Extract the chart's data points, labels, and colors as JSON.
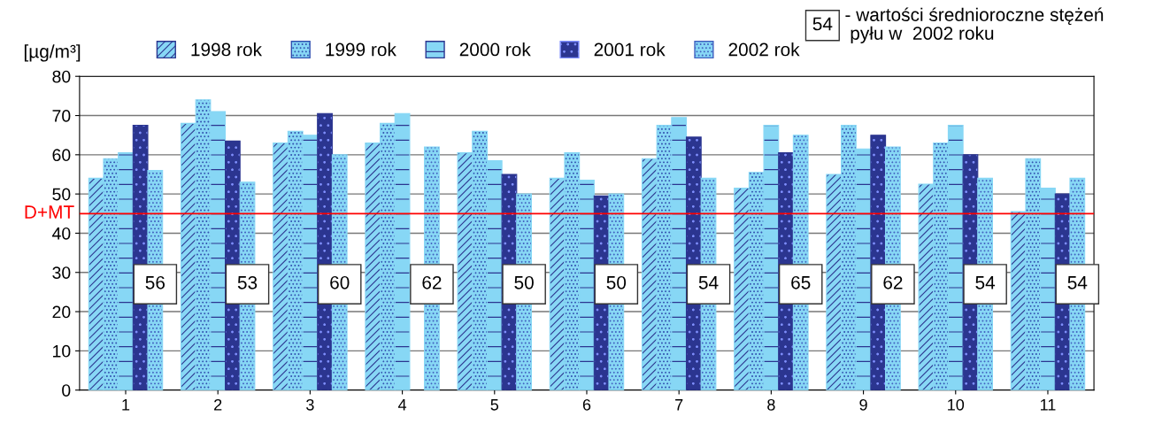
{
  "chart_data": {
    "type": "bar",
    "ylabel": "[µg/m³]",
    "categories": [
      "1",
      "2",
      "3",
      "4",
      "5",
      "6",
      "7",
      "8",
      "9",
      "10",
      "11"
    ],
    "series": [
      {
        "name": "1998 rok",
        "color": "#87d7f5",
        "values": [
          54,
          68,
          63,
          63,
          60.5,
          54,
          59,
          51.5,
          55,
          52.5,
          45.5
        ]
      },
      {
        "name": "1999 rok",
        "color": "#87d7f5",
        "values": [
          59,
          74,
          66,
          68,
          66,
          60.5,
          67.5,
          55.5,
          67.5,
          63,
          59
        ]
      },
      {
        "name": "2000 rok",
        "color": "#87d7f5",
        "values": [
          60.5,
          71,
          65,
          70.5,
          58.5,
          53.5,
          69.5,
          67.5,
          61.5,
          67.5,
          51.5
        ]
      },
      {
        "name": "2001 rok",
        "color": "#2b3590",
        "values": [
          67.5,
          63.5,
          70.5,
          null,
          55,
          49.5,
          64.5,
          60.5,
          65,
          60,
          50
        ]
      },
      {
        "name": "2002 rok",
        "color": "#87d7f5",
        "values": [
          56,
          53,
          60,
          62,
          50,
          50,
          54,
          65,
          62,
          54,
          54
        ],
        "value_labels": [
          "56",
          "53",
          "60",
          "62",
          "50",
          "50",
          "54",
          "65",
          "62",
          "54",
          "54"
        ]
      }
    ],
    "ylim": [
      0,
      80
    ],
    "yticks": [
      0,
      10,
      20,
      30,
      40,
      50,
      60,
      70,
      80
    ],
    "grid": "y",
    "legend": "top",
    "ref_lines": [
      {
        "axis": "y",
        "value": 45,
        "label": "D+MT",
        "color": "#ff0000"
      }
    ],
    "annotations": [
      "54",
      "- wartości średnioroczne stężeń\n pyłu w  2002 roku"
    ]
  }
}
